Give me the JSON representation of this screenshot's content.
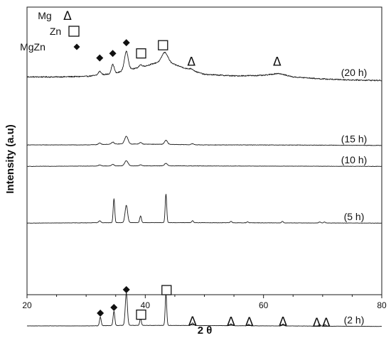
{
  "chart_data": {
    "type": "line",
    "title": "",
    "xlabel": "2 θ",
    "ylabel": "Intensity (a.u)",
    "xlim": [
      20,
      80
    ],
    "x_ticks": [
      20,
      40,
      60,
      80
    ],
    "y_ticks_shown": false,
    "grid": false,
    "legend": {
      "placement": "top-left",
      "entries": [
        {
          "label": "Mg",
          "marker": "Δ",
          "symbol": "triangle"
        },
        {
          "label": "Zn",
          "marker": "□",
          "symbol": "square"
        },
        {
          "label": "MgZn",
          "marker": "◆",
          "symbol": "diamond"
        }
      ]
    },
    "series": [
      {
        "name": "(20 h)",
        "offset": 0.93,
        "noise": 0.011,
        "baseline": [
          [
            20,
            0.12
          ],
          [
            25,
            0.12
          ],
          [
            30,
            0.13
          ],
          [
            35,
            0.19
          ],
          [
            36.5,
            0.25
          ],
          [
            39,
            0.3
          ],
          [
            42,
            0.4
          ],
          [
            44,
            0.4
          ],
          [
            47,
            0.28
          ],
          [
            50,
            0.17
          ],
          [
            55,
            0.14
          ],
          [
            60,
            0.15
          ],
          [
            62.5,
            0.19
          ],
          [
            65,
            0.12
          ],
          [
            70,
            0.08
          ],
          [
            75,
            0.06
          ],
          [
            80,
            0.05
          ]
        ],
        "peaks": [
          {
            "x": 32.3,
            "h": 0.07,
            "w": 0.35
          },
          {
            "x": 34.5,
            "h": 0.18,
            "w": 0.35
          },
          {
            "x": 36.8,
            "h": 0.36,
            "w": 0.45
          },
          {
            "x": 39.2,
            "h": 0.05,
            "w": 0.4
          },
          {
            "x": 43.3,
            "h": 0.2,
            "w": 0.7
          },
          {
            "x": 47.8,
            "h": 0.03,
            "w": 0.5
          }
        ],
        "markers": [
          {
            "x": 32.3,
            "y": 0.49,
            "symbol": "diamond"
          },
          {
            "x": 34.5,
            "y": 0.58,
            "symbol": "diamond"
          },
          {
            "x": 36.8,
            "y": 0.79,
            "symbol": "diamond"
          },
          {
            "x": 39.3,
            "y": 0.58,
            "symbol": "square"
          },
          {
            "x": 43.0,
            "y": 0.74,
            "symbol": "square"
          },
          {
            "x": 47.8,
            "y": 0.42,
            "symbol": "triangle"
          },
          {
            "x": 62.3,
            "y": 0.42,
            "symbol": "triangle"
          }
        ]
      },
      {
        "name": "(15 h)",
        "offset": 2.16,
        "noise": 0.004,
        "baseline": [
          [
            20,
            0.02
          ],
          [
            30,
            0.02
          ],
          [
            36,
            0.04
          ],
          [
            44,
            0.03
          ],
          [
            50,
            0.02
          ],
          [
            60,
            0.02
          ],
          [
            80,
            0.01
          ]
        ],
        "peaks": [
          {
            "x": 32.3,
            "h": 0.03,
            "w": 0.3
          },
          {
            "x": 34.5,
            "h": 0.04,
            "w": 0.3
          },
          {
            "x": 36.8,
            "h": 0.15,
            "w": 0.4
          },
          {
            "x": 39.2,
            "h": 0.03,
            "w": 0.3
          },
          {
            "x": 43.5,
            "h": 0.08,
            "w": 0.35
          },
          {
            "x": 48.0,
            "h": 0.02,
            "w": 0.3
          }
        ],
        "markers": []
      },
      {
        "name": "(10 h)",
        "offset": 2.57,
        "noise": 0.003,
        "baseline": [
          [
            20,
            0.01
          ],
          [
            36,
            0.02
          ],
          [
            44,
            0.02
          ],
          [
            80,
            0.01
          ]
        ],
        "peaks": [
          {
            "x": 32.3,
            "h": 0.02,
            "w": 0.3
          },
          {
            "x": 34.5,
            "h": 0.03,
            "w": 0.3
          },
          {
            "x": 36.8,
            "h": 0.1,
            "w": 0.4
          },
          {
            "x": 39.2,
            "h": 0.02,
            "w": 0.3
          },
          {
            "x": 43.5,
            "h": 0.05,
            "w": 0.35
          }
        ],
        "markers": []
      },
      {
        "name": "(5 h)",
        "offset": 3.68,
        "noise": 0.003,
        "baseline": [
          [
            20,
            0.01
          ],
          [
            36,
            0.02
          ],
          [
            44,
            0.02
          ],
          [
            80,
            0.01
          ]
        ],
        "peaks": [
          {
            "x": 32.3,
            "h": 0.04,
            "w": 0.25
          },
          {
            "x": 34.7,
            "h": 0.47,
            "w": 0.18
          },
          {
            "x": 36.8,
            "h": 0.34,
            "w": 0.3
          },
          {
            "x": 39.2,
            "h": 0.13,
            "w": 0.2
          },
          {
            "x": 43.5,
            "h": 0.56,
            "w": 0.18
          },
          {
            "x": 48.0,
            "h": 0.04,
            "w": 0.2
          },
          {
            "x": 54.5,
            "h": 0.03,
            "w": 0.2
          },
          {
            "x": 57.3,
            "h": 0.02,
            "w": 0.2
          },
          {
            "x": 63.2,
            "h": 0.03,
            "w": 0.2
          },
          {
            "x": 69.5,
            "h": 0.02,
            "w": 0.2
          },
          {
            "x": 70.3,
            "h": 0.02,
            "w": 0.2
          }
        ],
        "markers": []
      },
      {
        "name": "(2 h)",
        "offset": 5.7,
        "noise": 0.003,
        "baseline": [
          [
            20,
            0.02
          ],
          [
            30,
            0.02
          ],
          [
            36,
            0.03
          ],
          [
            44,
            0.03
          ],
          [
            80,
            0.01
          ]
        ],
        "peaks": [
          {
            "x": 32.4,
            "h": 0.17,
            "w": 0.2
          },
          {
            "x": 34.7,
            "h": 0.28,
            "w": 0.2
          },
          {
            "x": 36.8,
            "h": 0.64,
            "w": 0.25
          },
          {
            "x": 39.2,
            "h": 0.15,
            "w": 0.18
          },
          {
            "x": 43.5,
            "h": 0.62,
            "w": 0.18
          },
          {
            "x": 48.0,
            "h": 0.05,
            "w": 0.25
          },
          {
            "x": 54.5,
            "h": 0.04,
            "w": 0.22
          },
          {
            "x": 57.5,
            "h": 0.03,
            "w": 0.22
          },
          {
            "x": 63.3,
            "h": 0.04,
            "w": 0.22
          },
          {
            "x": 69.5,
            "h": 0.03,
            "w": 0.22
          },
          {
            "x": 70.4,
            "h": 0.03,
            "w": 0.22
          }
        ],
        "markers": [
          {
            "x": 32.4,
            "y": 0.27,
            "symbol": "diamond"
          },
          {
            "x": 34.7,
            "y": 0.38,
            "symbol": "diamond"
          },
          {
            "x": 36.8,
            "y": 0.73,
            "symbol": "diamond"
          },
          {
            "x": 39.3,
            "y": 0.24,
            "symbol": "square"
          },
          {
            "x": 43.6,
            "y": 0.72,
            "symbol": "square"
          },
          {
            "x": 48.0,
            "y": 0.12,
            "symbol": "triangle"
          },
          {
            "x": 54.5,
            "y": 0.11,
            "symbol": "triangle"
          },
          {
            "x": 57.6,
            "y": 0.1,
            "symbol": "triangle"
          },
          {
            "x": 63.3,
            "y": 0.11,
            "symbol": "triangle"
          },
          {
            "x": 69.0,
            "y": 0.09,
            "symbol": "triangle"
          },
          {
            "x": 70.6,
            "y": 0.09,
            "symbol": "triangle"
          }
        ]
      }
    ]
  }
}
